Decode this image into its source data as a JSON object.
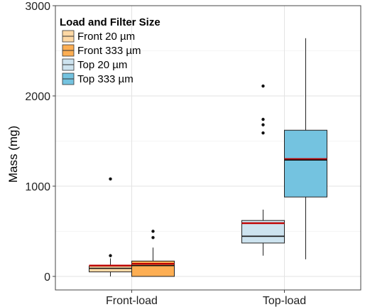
{
  "chart_data": {
    "type": "boxplot",
    "title": "",
    "xlabel": "",
    "ylabel": "Mass (mg)",
    "ylim": [
      -150,
      3000
    ],
    "yticks": [
      0,
      1000,
      2000,
      3000
    ],
    "categories": [
      "Front-load",
      "Top-load"
    ],
    "grid": true,
    "legend": {
      "title": "Load and Filter Size",
      "position": "top-left"
    },
    "series": [
      {
        "name": "Front 20 µm",
        "color": "#fdd8a5",
        "boxes": [
          {
            "category": "Front-load",
            "min": 0,
            "q1": 50,
            "median": 90,
            "q3": 115,
            "max": 200,
            "mean": 120,
            "outliers": [
              230,
              1080
            ]
          }
        ]
      },
      {
        "name": "Front 333 µm",
        "color": "#fdae53",
        "boxes": [
          {
            "category": "Front-load",
            "min": 0,
            "q1": 0,
            "median": 120,
            "q3": 170,
            "max": 320,
            "mean": 140,
            "outliers": [
              430,
              500
            ]
          }
        ]
      },
      {
        "name": "Top 20 µm",
        "color": "#cde3ef",
        "boxes": [
          {
            "category": "Top-load",
            "min": 230,
            "q1": 370,
            "median": 445,
            "q3": 620,
            "max": 740,
            "mean": 590,
            "outliers": [
              1590,
              1680,
              1740,
              2110
            ]
          }
        ]
      },
      {
        "name": "Top 333 µm",
        "color": "#74c3e0",
        "boxes": [
          {
            "category": "Top-load",
            "min": 190,
            "q1": 880,
            "median": 1290,
            "q3": 1620,
            "max": 2640,
            "mean": 1300,
            "outliers": []
          }
        ]
      }
    ],
    "mean_line_color": "#c00000"
  }
}
